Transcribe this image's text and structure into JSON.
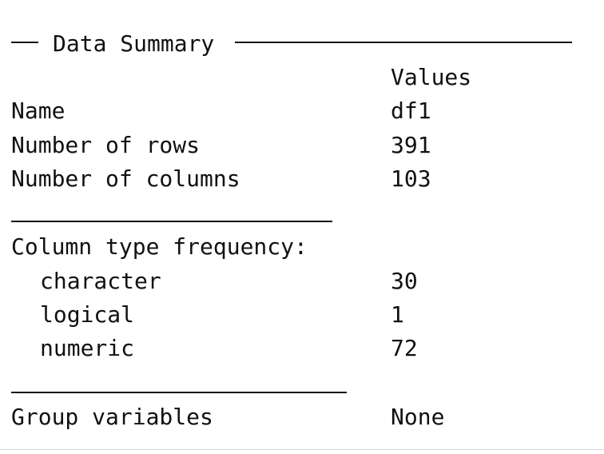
{
  "title": "Data Summary",
  "header": {
    "values_label": "Values"
  },
  "rows": [
    {
      "label": "Name",
      "value": "df1"
    },
    {
      "label": "Number of rows",
      "value": "391"
    },
    {
      "label": "Number of columns",
      "value": "103"
    }
  ],
  "column_types": {
    "label": "Column type frequency:",
    "items": [
      {
        "label": "character",
        "value": "30"
      },
      {
        "label": "logical",
        "value": "1"
      },
      {
        "label": "numeric",
        "value": "72"
      }
    ]
  },
  "group": {
    "label": "Group variables",
    "value": "None"
  }
}
